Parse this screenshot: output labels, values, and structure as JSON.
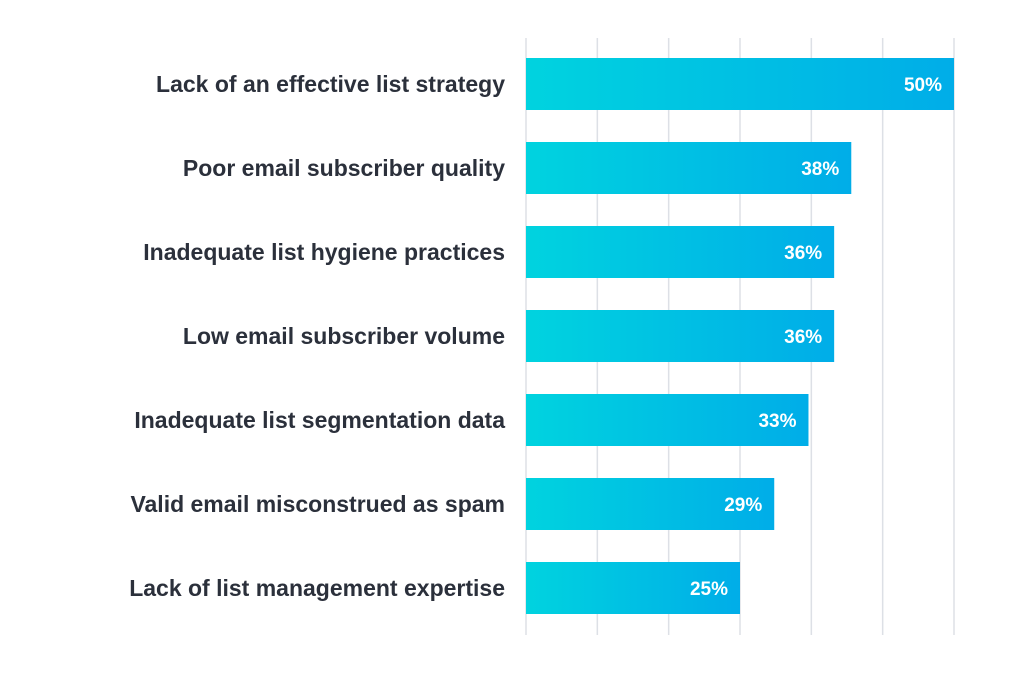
{
  "chart_data": {
    "type": "bar",
    "orientation": "horizontal",
    "categories": [
      "Lack of an effective list strategy",
      "Poor email subscriber quality",
      "Inadequate list hygiene practices",
      "Low email subscriber volume",
      "Inadequate list segmentation data",
      "Valid email misconstrued as spam",
      "Lack of list management expertise"
    ],
    "values": [
      50,
      38,
      36,
      36,
      33,
      29,
      25
    ],
    "data_labels": [
      "50%",
      "38%",
      "36%",
      "36%",
      "33%",
      "29%",
      "25%"
    ],
    "title": "",
    "xlabel": "",
    "ylabel": "",
    "xlim": [
      0,
      50
    ],
    "grid": true,
    "colors": {
      "bar_start": "#00d3df",
      "bar_end": "#00ade8",
      "grid": "#dde0e6",
      "label": "#2b303b",
      "value_label": "#ffffff"
    }
  }
}
